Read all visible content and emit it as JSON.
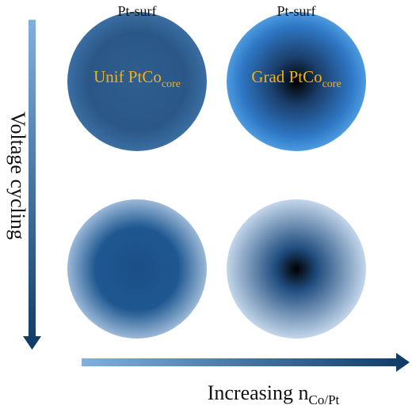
{
  "particles": [
    {
      "surface": "Pt-surf",
      "core": "Unif PtCo",
      "core_sub": "core"
    },
    {
      "surface": "Pt-surf",
      "core": "Grad PtCo",
      "core_sub": "core"
    }
  ],
  "axes": {
    "vertical": "Voltage cycling",
    "horizontal": "Increasing n",
    "horizontal_sub": "Co/Pt"
  }
}
